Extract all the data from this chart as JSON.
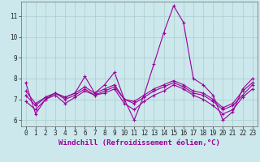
{
  "xlabel": "Windchill (Refroidissement éolien,°C)",
  "background_color": "#cce8ec",
  "grid_color": "#aacccc",
  "line_color": "#990099",
  "xlim": [
    -0.5,
    23.5
  ],
  "ylim": [
    5.7,
    11.7
  ],
  "xticks": [
    0,
    1,
    2,
    3,
    4,
    5,
    6,
    7,
    8,
    9,
    10,
    11,
    12,
    13,
    14,
    15,
    16,
    17,
    18,
    19,
    20,
    21,
    22,
    23
  ],
  "yticks": [
    6,
    7,
    8,
    9,
    10,
    11
  ],
  "lines": [
    {
      "x": [
        0,
        1,
        2,
        3,
        4,
        5,
        6,
        7,
        8,
        9,
        10,
        11,
        12,
        13,
        14,
        15,
        16,
        17,
        18,
        19,
        20,
        21,
        22,
        23
      ],
      "y": [
        7.8,
        6.3,
        7.0,
        7.3,
        7.1,
        7.3,
        8.1,
        7.3,
        7.7,
        8.3,
        7.0,
        6.0,
        7.2,
        8.7,
        10.2,
        11.5,
        10.7,
        8.0,
        7.7,
        7.2,
        6.0,
        6.4,
        7.5,
        8.0
      ]
    },
    {
      "x": [
        0,
        1,
        2,
        3,
        4,
        5,
        6,
        7,
        8,
        9,
        10,
        11,
        12,
        13,
        14,
        15,
        16,
        17,
        18,
        19,
        20,
        21,
        22,
        23
      ],
      "y": [
        6.9,
        6.5,
        7.0,
        7.2,
        6.8,
        7.1,
        7.4,
        7.2,
        7.3,
        7.5,
        6.8,
        6.5,
        6.9,
        7.2,
        7.4,
        7.7,
        7.5,
        7.2,
        7.0,
        6.7,
        6.3,
        6.5,
        7.1,
        7.5
      ]
    },
    {
      "x": [
        0,
        1,
        2,
        3,
        4,
        5,
        6,
        7,
        8,
        9,
        10,
        11,
        12,
        13,
        14,
        15,
        16,
        17,
        18,
        19,
        20,
        21,
        22,
        23
      ],
      "y": [
        7.2,
        6.7,
        7.1,
        7.3,
        7.0,
        7.2,
        7.5,
        7.2,
        7.4,
        7.6,
        7.0,
        6.8,
        7.1,
        7.4,
        7.6,
        7.8,
        7.6,
        7.3,
        7.2,
        6.9,
        6.5,
        6.7,
        7.2,
        7.7
      ]
    },
    {
      "x": [
        0,
        1,
        2,
        3,
        4,
        5,
        6,
        7,
        8,
        9,
        10,
        11,
        12,
        13,
        14,
        15,
        16,
        17,
        18,
        19,
        20,
        21,
        22,
        23
      ],
      "y": [
        7.4,
        6.8,
        7.1,
        7.3,
        7.1,
        7.3,
        7.6,
        7.3,
        7.5,
        7.7,
        7.0,
        6.9,
        7.2,
        7.5,
        7.7,
        7.9,
        7.7,
        7.4,
        7.3,
        7.0,
        6.6,
        6.8,
        7.4,
        7.8
      ]
    }
  ],
  "marker": "+",
  "markersize": 3,
  "linewidth": 0.8,
  "tick_fontsize": 5.5,
  "label_fontsize": 6.5,
  "spine_color": "#666666"
}
